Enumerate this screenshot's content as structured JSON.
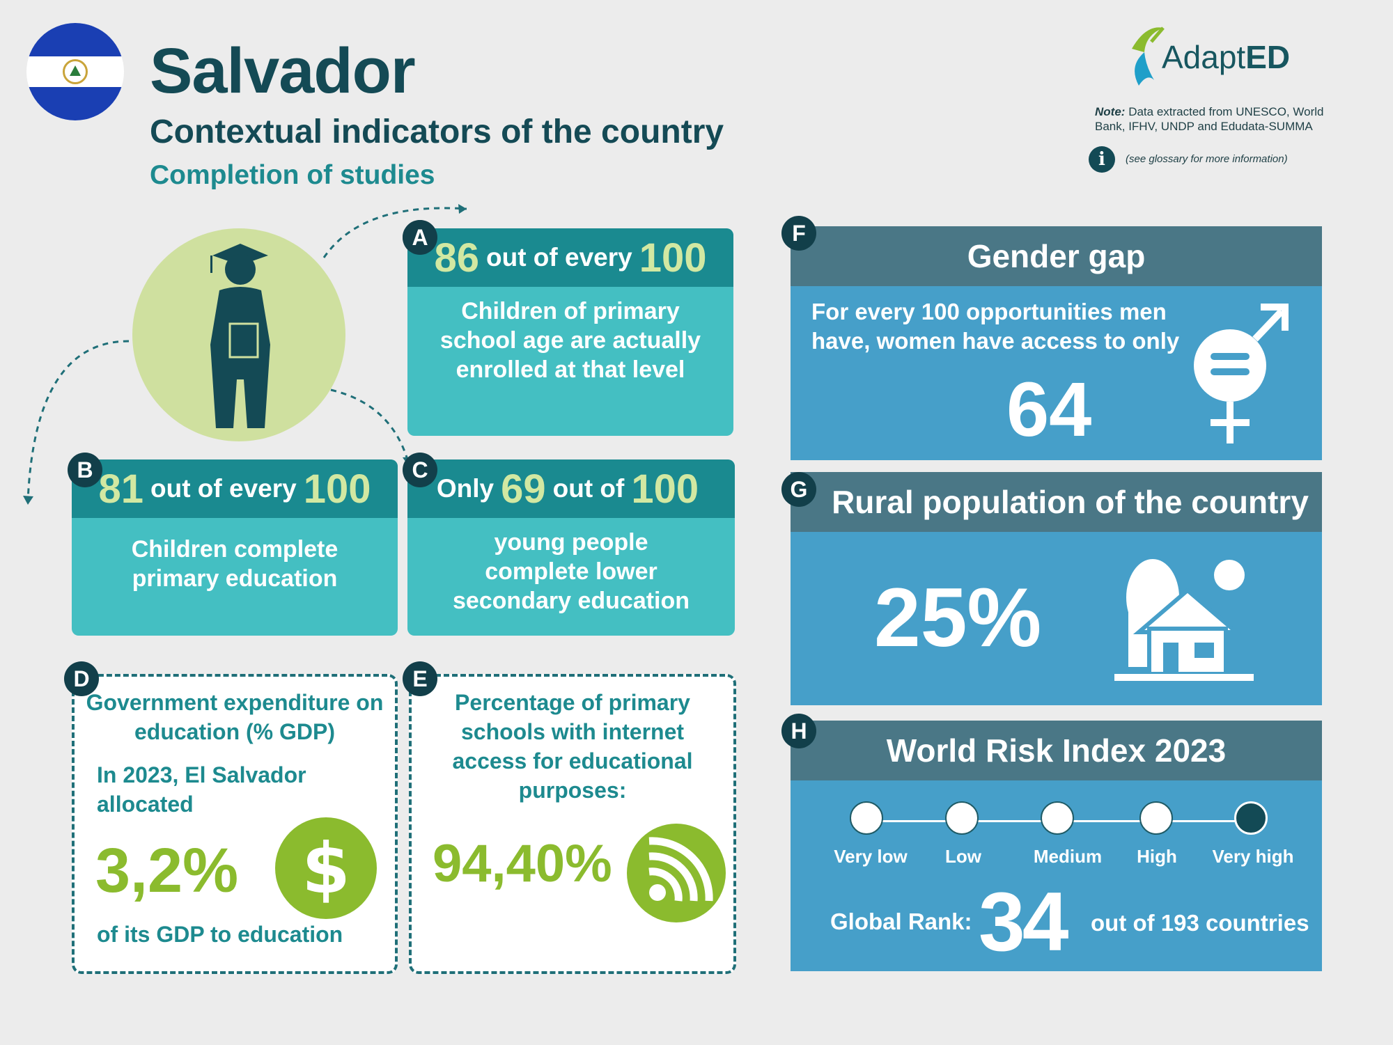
{
  "header": {
    "country": "Salvador",
    "subtitle": "Contextual indicators of the country",
    "section": "Completion of studies"
  },
  "logo": {
    "text_light": "Adapt",
    "text_bold": "ED"
  },
  "note": {
    "label": "Note:",
    "text": "Data extracted from UNESCO, World Bank, IFHV, UNDP and Edudata-SUMMA",
    "info_icon": "info-icon",
    "glossary": "(see glossary for more information)"
  },
  "cards": {
    "A": {
      "letter": "A",
      "value": "86",
      "mid": "out of every",
      "total": "100",
      "text": "Children of primary school age are actually enrolled at that level"
    },
    "B": {
      "letter": "B",
      "value": "81",
      "mid": "out of every",
      "total": "100",
      "text": "Children complete primary education"
    },
    "C": {
      "letter": "C",
      "prefix": "Only",
      "value": "69",
      "mid": "out of",
      "total": "100",
      "text": "young people complete lower secondary education"
    }
  },
  "D": {
    "letter": "D",
    "title": "Government expenditure on education (% GDP)",
    "intro": "In 2023, El Salvador allocated",
    "value": "3,2%",
    "outro": "of its GDP to education",
    "icon": "dollar-icon"
  },
  "E": {
    "letter": "E",
    "title": "Percentage of primary schools with internet access for educational purposes:",
    "value": "94,40%",
    "icon": "wifi-icon"
  },
  "F": {
    "letter": "F",
    "title": "Gender gap",
    "text": "For every 100 opportunities men have, women have access to only",
    "value": "64",
    "icon": "gender-equality-icon"
  },
  "G": {
    "letter": "G",
    "title": "Rural population of the country",
    "value": "25%",
    "icon": "rural-house-icon"
  },
  "H": {
    "letter": "H",
    "title": "World Risk Index 2023",
    "levels": [
      "Very low",
      "Low",
      "Medium",
      "High",
      "Very high"
    ],
    "selected_level": "Very high",
    "rank_label": "Global Rank:",
    "rank": "34",
    "rank_suffix": "out of 193 countries"
  },
  "colors": {
    "dark_teal": "#144a55",
    "teal": "#1d8a8f",
    "light_teal": "#44bfc2",
    "green": "#8bbb2e",
    "panel_blue": "#469fc9",
    "panel_head": "#4a7786"
  }
}
